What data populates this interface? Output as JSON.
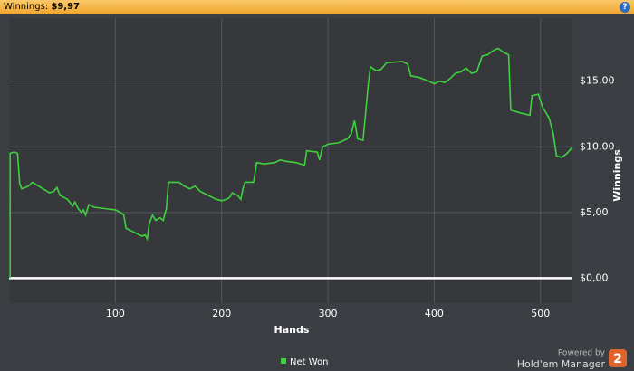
{
  "header": {
    "label": "Winnings:",
    "value": "$9,97",
    "help": "?"
  },
  "chart_data": {
    "type": "line",
    "xlabel": "Hands",
    "ylabel": "Winnings",
    "x": [
      1,
      1,
      5,
      8,
      10,
      12,
      18,
      22,
      30,
      38,
      42,
      45,
      48,
      55,
      60,
      62,
      65,
      68,
      70,
      72,
      75,
      80,
      90,
      100,
      105,
      108,
      110,
      115,
      120,
      125,
      128,
      130,
      132,
      135,
      138,
      142,
      145,
      148,
      150,
      155,
      160,
      165,
      170,
      175,
      180,
      185,
      190,
      195,
      200,
      205,
      208,
      210,
      215,
      218,
      220,
      222,
      230,
      233,
      240,
      250,
      255,
      260,
      270,
      278,
      280,
      290,
      292,
      295,
      300,
      310,
      318,
      322,
      325,
      328,
      333,
      335,
      338,
      340,
      345,
      350,
      355,
      370,
      375,
      378,
      385,
      395,
      400,
      405,
      410,
      415,
      420,
      425,
      430,
      435,
      440,
      445,
      450,
      455,
      460,
      465,
      470,
      472,
      480,
      490,
      492,
      498,
      502,
      508,
      512,
      515,
      520,
      525,
      530
    ],
    "series": [
      {
        "name": "Net Won",
        "color": "#3ed23e",
        "values": [
          0,
          9.5,
          9.6,
          9.5,
          7.2,
          6.8,
          7.0,
          7.3,
          6.9,
          6.5,
          6.6,
          6.9,
          6.3,
          6.0,
          5.5,
          5.8,
          5.3,
          5.0,
          5.2,
          4.8,
          5.6,
          5.4,
          5.3,
          5.2,
          5.0,
          4.8,
          3.8,
          3.6,
          3.4,
          3.2,
          3.3,
          3.0,
          4.2,
          4.8,
          4.4,
          4.6,
          4.4,
          5.3,
          7.3,
          7.3,
          7.3,
          7.0,
          6.8,
          7.0,
          6.6,
          6.4,
          6.2,
          6.0,
          5.9,
          6.0,
          6.2,
          6.5,
          6.3,
          6.0,
          6.8,
          7.3,
          7.3,
          8.8,
          8.7,
          8.8,
          9.0,
          8.9,
          8.8,
          8.6,
          9.7,
          9.6,
          9.0,
          10.0,
          10.2,
          10.3,
          10.6,
          11.0,
          12.0,
          10.6,
          10.5,
          12.2,
          14.8,
          16.1,
          15.8,
          15.9,
          16.4,
          16.5,
          16.3,
          15.4,
          15.3,
          15.0,
          14.8,
          15.0,
          14.9,
          15.2,
          15.6,
          15.7,
          16.0,
          15.6,
          15.7,
          16.9,
          17.0,
          17.3,
          17.5,
          17.2,
          17.0,
          12.8,
          12.6,
          12.4,
          13.9,
          14.0,
          13.0,
          12.2,
          11.0,
          9.3,
          9.2,
          9.5,
          9.97
        ]
      }
    ],
    "xlim": [
      0,
      530
    ],
    "ylim": [
      -1.9,
      19.8
    ],
    "xticks": [
      100,
      200,
      300,
      400,
      500
    ],
    "yticks": [
      {
        "value": 0,
        "label": "$0,00"
      },
      {
        "value": 5,
        "label": "$5,00"
      },
      {
        "value": 10,
        "label": "$10,00"
      },
      {
        "value": 15,
        "label": "$15,00"
      }
    ],
    "grid": true
  },
  "footer": {
    "powered_by": "Powered by",
    "brand": "Hold'em Manager",
    "badge": "2"
  }
}
